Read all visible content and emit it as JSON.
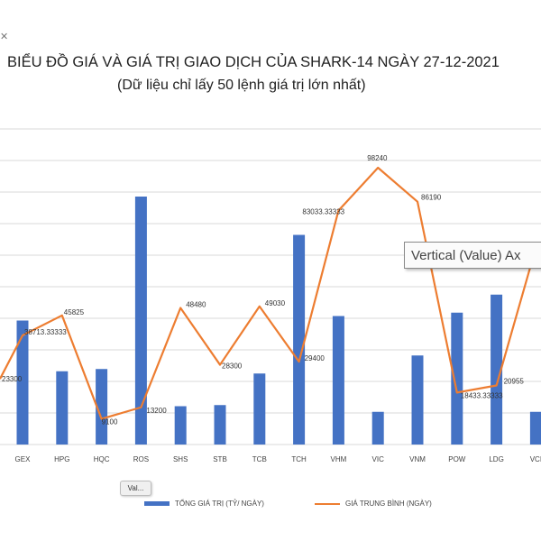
{
  "corner_mark": "✕",
  "tooltip": {
    "text": "Vertical (Value) Ax"
  },
  "button": {
    "label": "Val..."
  },
  "colors": {
    "bar": "#4472C4",
    "line": "#ED7D31",
    "grid": "#d9d9d9"
  },
  "chart_data": {
    "type": "bar",
    "title": "BIỂU ĐỒ GIÁ VÀ GIÁ TRỊ GIAO DỊCH CỦA SHARK-14 NGÀY 27-12-2021",
    "subtitle": "(Dữ liệu chỉ lấy 50 lệnh giá trị lớn nhất)",
    "categories": [
      "GEX",
      "HPG",
      "HQC",
      "ROS",
      "SHS",
      "STB",
      "TCB",
      "TCH",
      "VHM",
      "VIC",
      "VNM",
      "POW",
      "LDG",
      "VCI"
    ],
    "series": [
      {
        "name": "TỔNG GIÁ TRỊ (TỶ/ NGÀY)",
        "type": "bar",
        "values": [
          11,
          6.5,
          6.7,
          22,
          3.4,
          3.5,
          6.3,
          18.6,
          11.4,
          2.9,
          7.9,
          11.7,
          13.3,
          2.9
        ]
      },
      {
        "name": "GIÁ TRUNG BÌNH (NGÀY)",
        "type": "line",
        "values": [
          38713.33333,
          45825,
          9100,
          13200,
          48480,
          28300,
          49030,
          29400,
          83033.33333,
          98240,
          86190,
          18433.33333,
          20955,
          70000
        ],
        "start_value": 23300,
        "labels": [
          "38713.33333",
          "45825",
          "9100",
          "13200",
          "48480",
          "28300",
          "49030",
          "29400",
          "83033.33333",
          "98240",
          "86190",
          "18433.33333",
          "20955",
          ""
        ],
        "start_label": "23300"
      }
    ],
    "bar_ylim": [
      0,
      28
    ],
    "line_ylim": [
      0,
      112000
    ],
    "grid": true,
    "legend_position": "bottom"
  }
}
